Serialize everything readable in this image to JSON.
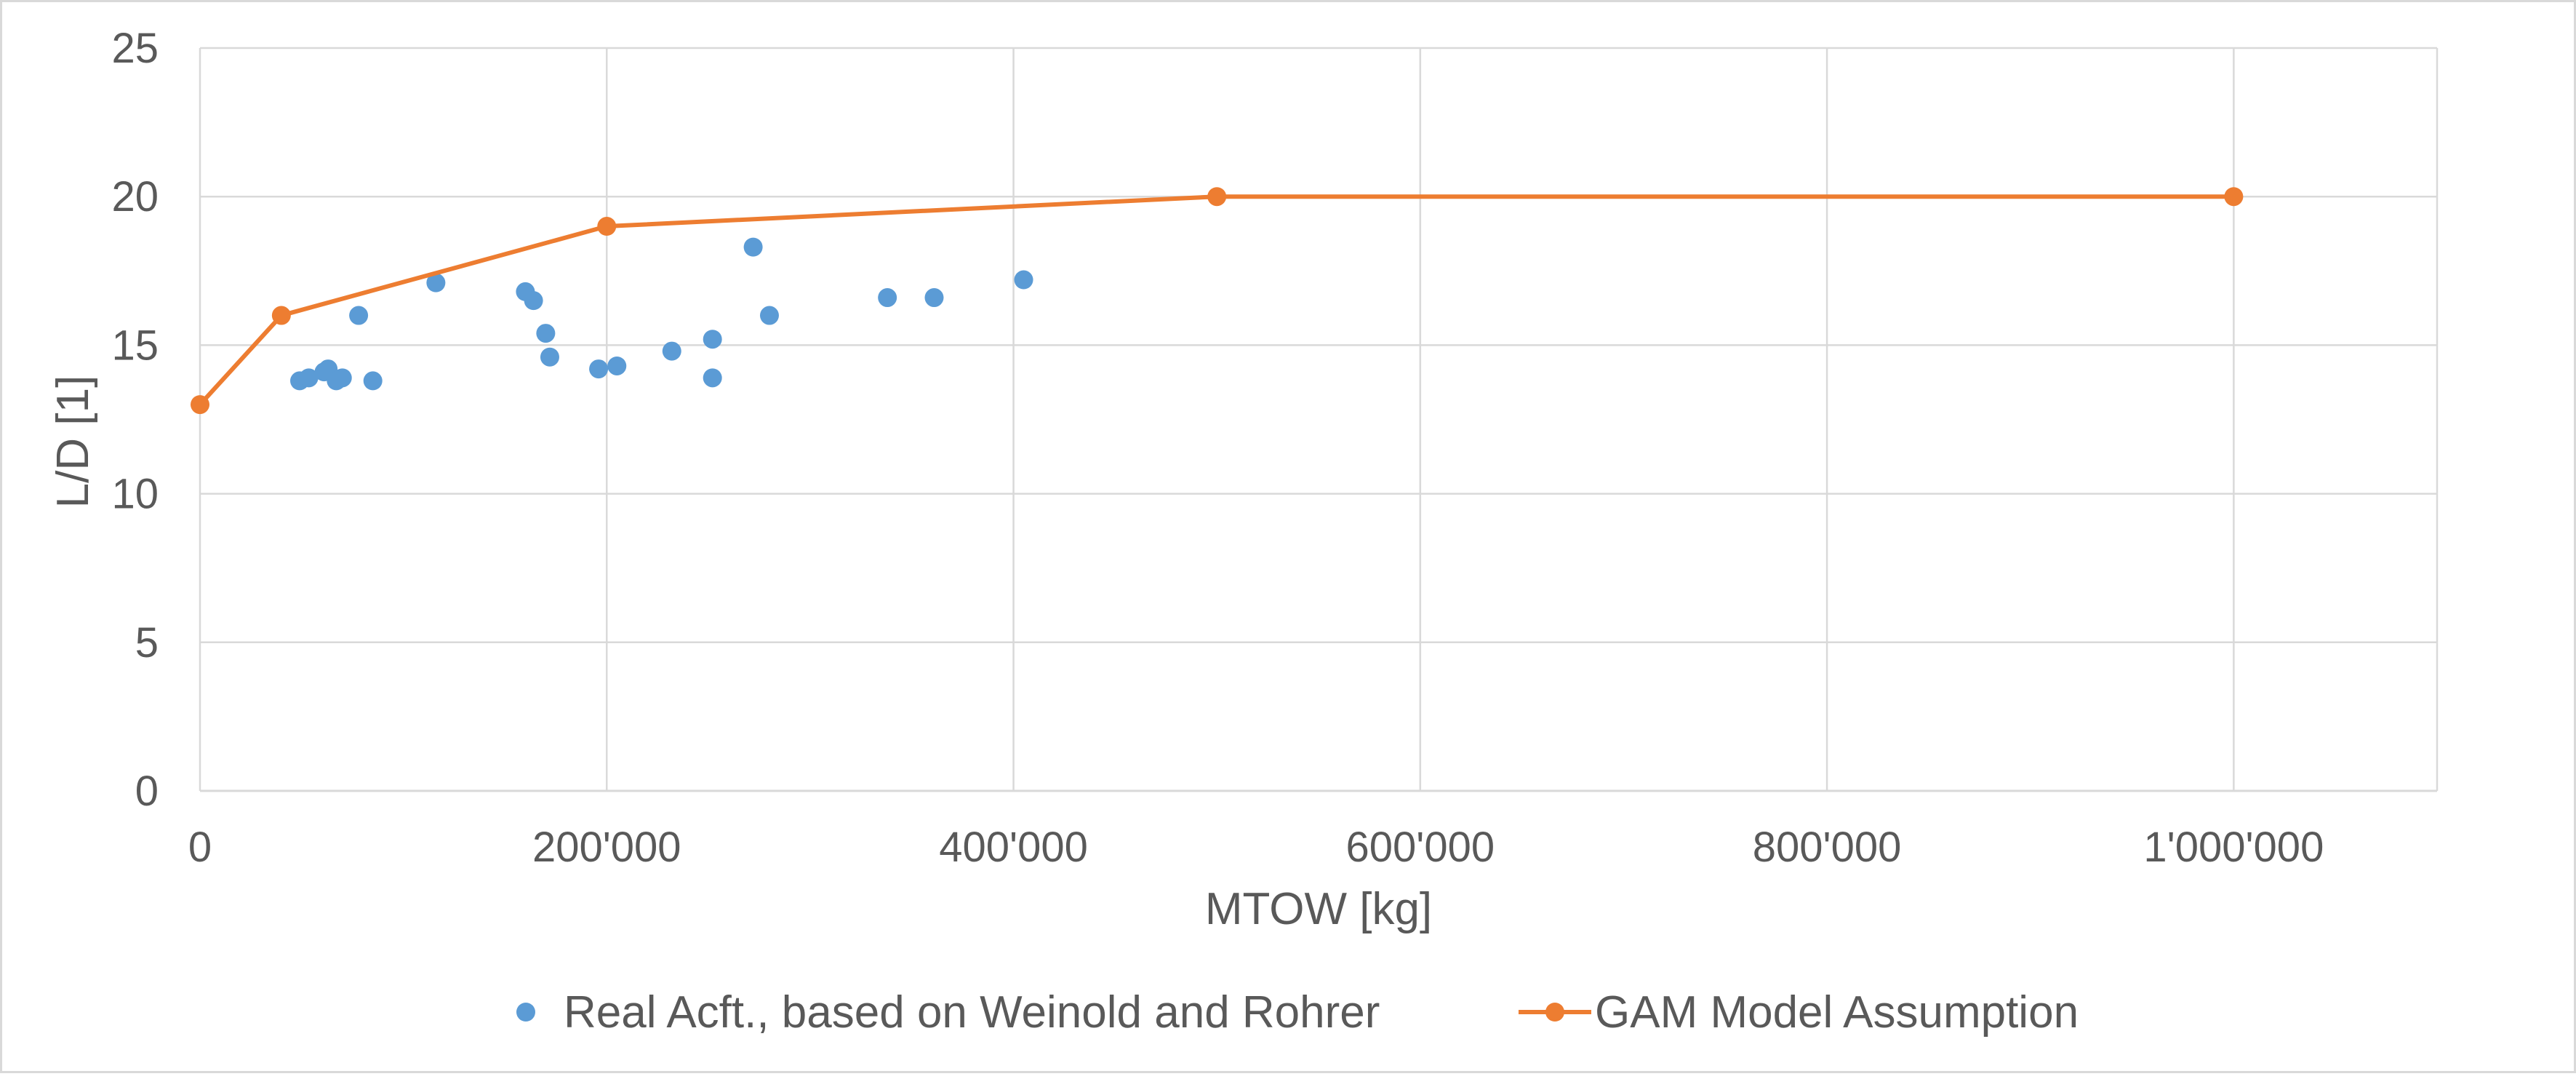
{
  "chart_data": {
    "type": "scatter",
    "title": "",
    "xlabel": "MTOW [kg]",
    "ylabel": "L/D [1]",
    "xlim": [
      0,
      1100000
    ],
    "ylim": [
      0,
      25
    ],
    "grid": true,
    "legend_position": "bottom",
    "x_ticks": [
      {
        "value": 0,
        "label": "0"
      },
      {
        "value": 200000,
        "label": "200'000"
      },
      {
        "value": 400000,
        "label": "400'000"
      },
      {
        "value": 600000,
        "label": "600'000"
      },
      {
        "value": 800000,
        "label": "800'000"
      },
      {
        "value": 1000000,
        "label": "1'000'000"
      }
    ],
    "y_ticks": [
      {
        "value": 0,
        "label": "0"
      },
      {
        "value": 5,
        "label": "5"
      },
      {
        "value": 10,
        "label": "10"
      },
      {
        "value": 15,
        "label": "15"
      },
      {
        "value": 20,
        "label": "20"
      },
      {
        "value": 25,
        "label": "25"
      }
    ],
    "series": [
      {
        "name": "Real Acft., based on Weinold and Rohrer",
        "kind": "scatter",
        "color": "#5b9bd5",
        "points": [
          {
            "x": 49000,
            "y": 13.8
          },
          {
            "x": 53500,
            "y": 13.9
          },
          {
            "x": 61000,
            "y": 14.1
          },
          {
            "x": 63000,
            "y": 14.2
          },
          {
            "x": 67000,
            "y": 13.8
          },
          {
            "x": 70000,
            "y": 13.9
          },
          {
            "x": 78000,
            "y": 16.0
          },
          {
            "x": 85000,
            "y": 13.8
          },
          {
            "x": 116000,
            "y": 17.1
          },
          {
            "x": 160000,
            "y": 16.8
          },
          {
            "x": 164000,
            "y": 16.5
          },
          {
            "x": 170000,
            "y": 15.4
          },
          {
            "x": 172000,
            "y": 14.6
          },
          {
            "x": 196000,
            "y": 14.2
          },
          {
            "x": 205000,
            "y": 14.3
          },
          {
            "x": 232000,
            "y": 14.8
          },
          {
            "x": 252000,
            "y": 15.2
          },
          {
            "x": 252000,
            "y": 13.9
          },
          {
            "x": 272000,
            "y": 18.3
          },
          {
            "x": 280000,
            "y": 16.0
          },
          {
            "x": 338000,
            "y": 16.6
          },
          {
            "x": 361000,
            "y": 16.6
          },
          {
            "x": 405000,
            "y": 17.2
          }
        ]
      },
      {
        "name": "GAM Model Assumption",
        "kind": "line",
        "color": "#ed7d31",
        "points": [
          {
            "x": 0,
            "y": 13
          },
          {
            "x": 40000,
            "y": 16
          },
          {
            "x": 200000,
            "y": 19
          },
          {
            "x": 500000,
            "y": 20
          },
          {
            "x": 1000000,
            "y": 20
          }
        ]
      }
    ]
  }
}
